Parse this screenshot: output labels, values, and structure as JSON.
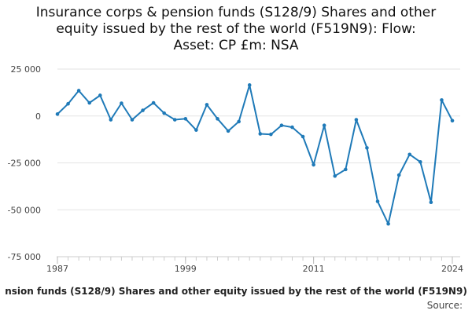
{
  "chart_data": {
    "type": "line",
    "title_lines": [
      "Insurance corps & pension funds (S128/9) Shares and other",
      "equity issued by the rest of the world (F519N9): Flow:",
      "Asset: CP £m: NSA"
    ],
    "xlabel": "nsion funds (S128/9) Shares and other equity issued by the rest of the world (F519N9)",
    "source": "Source:",
    "y_ticks": [
      25000,
      0,
      -25000,
      -50000,
      -75000
    ],
    "y_tick_labels": [
      "25 000",
      "0",
      "-25 000",
      "-50 000",
      "-75 000"
    ],
    "ylim": [
      -75000,
      25000
    ],
    "x_tick_labels": [
      "1987",
      "1999",
      "2011",
      "2024"
    ],
    "x_ticks": [
      1987,
      1999,
      2011,
      2024
    ],
    "xlim": [
      1987,
      2024
    ],
    "grid": true,
    "series": [
      {
        "color": "#1f7ab8",
        "x": [
          1987,
          1988,
          1989,
          1990,
          1991,
          1992,
          1993,
          1994,
          1995,
          1996,
          1997,
          1998,
          1999,
          2000,
          2001,
          2002,
          2003,
          2004,
          2005,
          2006,
          2007,
          2008,
          2009,
          2010,
          2011,
          2012,
          2013,
          2014,
          2015,
          2016,
          2017,
          2018,
          2019,
          2020,
          2021,
          2022,
          2023,
          2024
        ],
        "values": [
          1000,
          6500,
          13500,
          7000,
          11000,
          -2000,
          6800,
          -2000,
          3000,
          7000,
          1500,
          -2000,
          -1500,
          -7500,
          6000,
          -1500,
          -8000,
          -3000,
          16500,
          -9500,
          -9800,
          -5000,
          -6000,
          -11000,
          -26000,
          -5000,
          -32000,
          -28500,
          -2000,
          -17000,
          -45500,
          -57500,
          -31500,
          -20500,
          -24500,
          -46000,
          8500,
          -2500
        ]
      }
    ]
  }
}
